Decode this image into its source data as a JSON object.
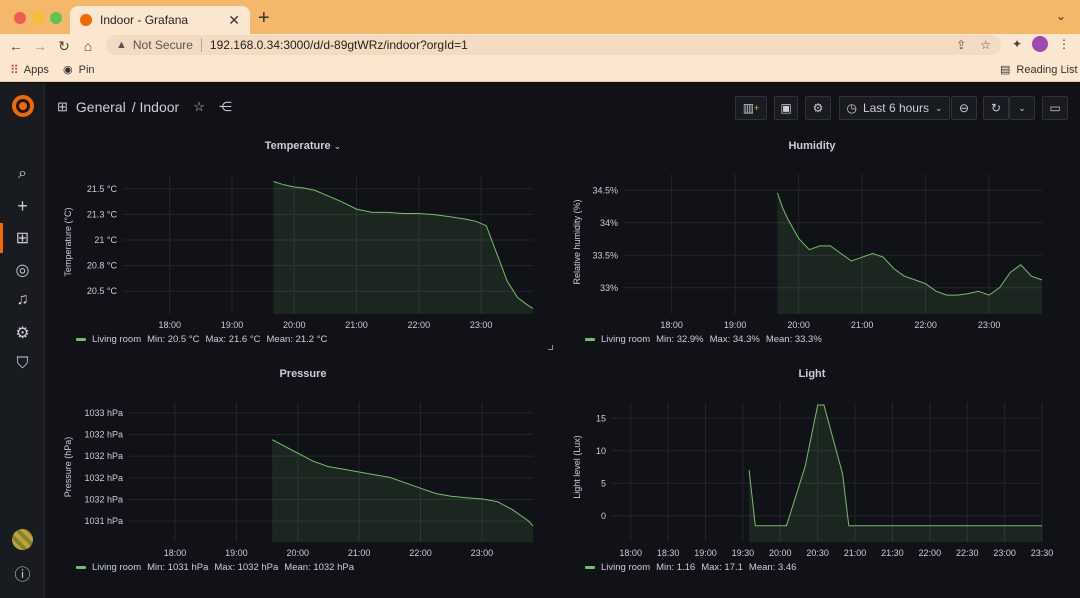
{
  "browser": {
    "tab_title": "Indoor - Grafana",
    "not_secure": "Not Secure",
    "url": "192.168.0.34:3000/d/d-89gtWRz/indoor?orgId=1",
    "bookmarks": [
      {
        "label": "Apps"
      },
      {
        "label": "Pin"
      }
    ],
    "reading_list": "Reading List"
  },
  "header": {
    "folder": "General",
    "dashboard": "/ Indoor",
    "time_range": "Last 6 hours"
  },
  "colors": {
    "series": "#73bf69",
    "brand": "#f46800"
  },
  "panels": {
    "temperature": {
      "title": "Temperature",
      "legend_series": "Living room",
      "min": "Min: 20.5 °C",
      "max": "Max: 21.6 °C",
      "mean": "Mean: 21.2 °C"
    },
    "humidity": {
      "title": "Humidity",
      "legend_series": "Living room",
      "min": "Min: 32.9%",
      "max": "Max: 34.3%",
      "mean": "Mean: 33.3%"
    },
    "pressure": {
      "title": "Pressure",
      "legend_series": "Living room",
      "min": "Min: 1031 hPa",
      "max": "Max: 1032 hPa",
      "mean": "Mean: 1032 hPa"
    },
    "light": {
      "title": "Light",
      "legend_series": "Living room",
      "min": "Min: 1.16",
      "max": "Max: 17.1",
      "mean": "Mean: 3.46"
    }
  },
  "chart_data": [
    {
      "type": "line",
      "title": "Temperature",
      "ylabel": "Temperature (°C)",
      "xlabel": "",
      "x_ticks": [
        "18:00",
        "19:00",
        "20:00",
        "21:00",
        "22:00",
        "23:00"
      ],
      "y_ticks": [
        "21.5 °C",
        "21.3 °C",
        "21 °C",
        "20.8 °C",
        "20.5 °C"
      ],
      "ylim": [
        20.4,
        21.65
      ],
      "x_range": [
        "17:15",
        "23:50"
      ],
      "series": [
        {
          "name": "Living room",
          "x": [
            "19:40",
            "19:50",
            "20:00",
            "20:10",
            "20:20",
            "20:30",
            "20:45",
            "21:00",
            "21:15",
            "21:30",
            "21:45",
            "22:00",
            "22:15",
            "22:30",
            "22:45",
            "22:55",
            "23:05",
            "23:15",
            "23:25",
            "23:35",
            "23:45",
            "23:50"
          ],
          "values": [
            21.6,
            21.57,
            21.55,
            21.54,
            21.52,
            21.48,
            21.42,
            21.35,
            21.32,
            21.32,
            21.31,
            21.31,
            21.3,
            21.28,
            21.26,
            21.24,
            21.2,
            20.95,
            20.7,
            20.55,
            20.48,
            20.45
          ]
        }
      ]
    },
    {
      "type": "line",
      "title": "Humidity",
      "ylabel": "Relative humidity (%)",
      "xlabel": "",
      "x_ticks": [
        "18:00",
        "19:00",
        "20:00",
        "21:00",
        "22:00",
        "23:00"
      ],
      "y_ticks": [
        "34.5%",
        "34%",
        "33.5%",
        "33%"
      ],
      "ylim": [
        32.7,
        34.55
      ],
      "x_range": [
        "17:15",
        "23:50"
      ],
      "series": [
        {
          "name": "Living room",
          "x": [
            "19:40",
            "19:45",
            "19:50",
            "20:00",
            "20:10",
            "20:20",
            "20:30",
            "20:40",
            "20:50",
            "21:00",
            "21:10",
            "21:20",
            "21:30",
            "21:40",
            "21:50",
            "22:00",
            "22:10",
            "22:20",
            "22:30",
            "22:40",
            "22:50",
            "23:00",
            "23:10",
            "23:20",
            "23:30",
            "23:40",
            "23:50"
          ],
          "values": [
            34.3,
            34.1,
            33.95,
            33.7,
            33.55,
            33.6,
            33.6,
            33.5,
            33.4,
            33.45,
            33.5,
            33.45,
            33.3,
            33.2,
            33.15,
            33.1,
            33.0,
            32.95,
            32.95,
            32.97,
            33.0,
            32.95,
            33.05,
            33.25,
            33.35,
            33.2,
            33.15
          ]
        }
      ]
    },
    {
      "type": "line",
      "title": "Pressure",
      "ylabel": "Pressure (hPa)",
      "xlabel": "",
      "x_ticks": [
        "18:00",
        "19:00",
        "20:00",
        "21:00",
        "22:00",
        "23:00"
      ],
      "y_ticks": [
        "1033 hPa",
        "1032 hPa",
        "1032 hPa",
        "1032 hPa",
        "1032 hPa",
        "1031 hPa"
      ],
      "ylim": [
        1030.6,
        1033.2
      ],
      "x_range": [
        "17:15",
        "23:50"
      ],
      "series": [
        {
          "name": "Living room",
          "x": [
            "19:35",
            "19:45",
            "19:55",
            "20:05",
            "20:15",
            "20:30",
            "20:45",
            "21:00",
            "21:15",
            "21:30",
            "21:45",
            "22:00",
            "22:15",
            "22:30",
            "22:45",
            "23:00",
            "23:15",
            "23:30",
            "23:45",
            "23:50"
          ],
          "values": [
            1032.5,
            1032.4,
            1032.3,
            1032.2,
            1032.1,
            1032.0,
            1031.95,
            1031.9,
            1031.85,
            1031.8,
            1031.7,
            1031.6,
            1031.5,
            1031.45,
            1031.42,
            1031.4,
            1031.35,
            1031.2,
            1031.0,
            1030.9
          ]
        }
      ]
    },
    {
      "type": "line",
      "title": "Light",
      "ylabel": "Light level (Lux)",
      "xlabel": "",
      "x_ticks": [
        "18:00",
        "18:30",
        "19:00",
        "19:30",
        "20:00",
        "20:30",
        "21:00",
        "21:30",
        "22:00",
        "22:30",
        "23:00",
        "23:30"
      ],
      "y_ticks": [
        "15",
        "10",
        "5",
        "0"
      ],
      "ylim": [
        -1,
        17.5
      ],
      "x_range": [
        "17:45",
        "23:30"
      ],
      "series": [
        {
          "name": "Living room",
          "x": [
            "19:35",
            "19:40",
            "19:55",
            "20:05",
            "20:20",
            "20:30",
            "20:35",
            "20:50",
            "20:55",
            "23:30"
          ],
          "values": [
            8.5,
            1.16,
            1.16,
            1.16,
            9,
            17.1,
            17.1,
            8,
            1.16,
            1.16
          ]
        }
      ]
    }
  ]
}
